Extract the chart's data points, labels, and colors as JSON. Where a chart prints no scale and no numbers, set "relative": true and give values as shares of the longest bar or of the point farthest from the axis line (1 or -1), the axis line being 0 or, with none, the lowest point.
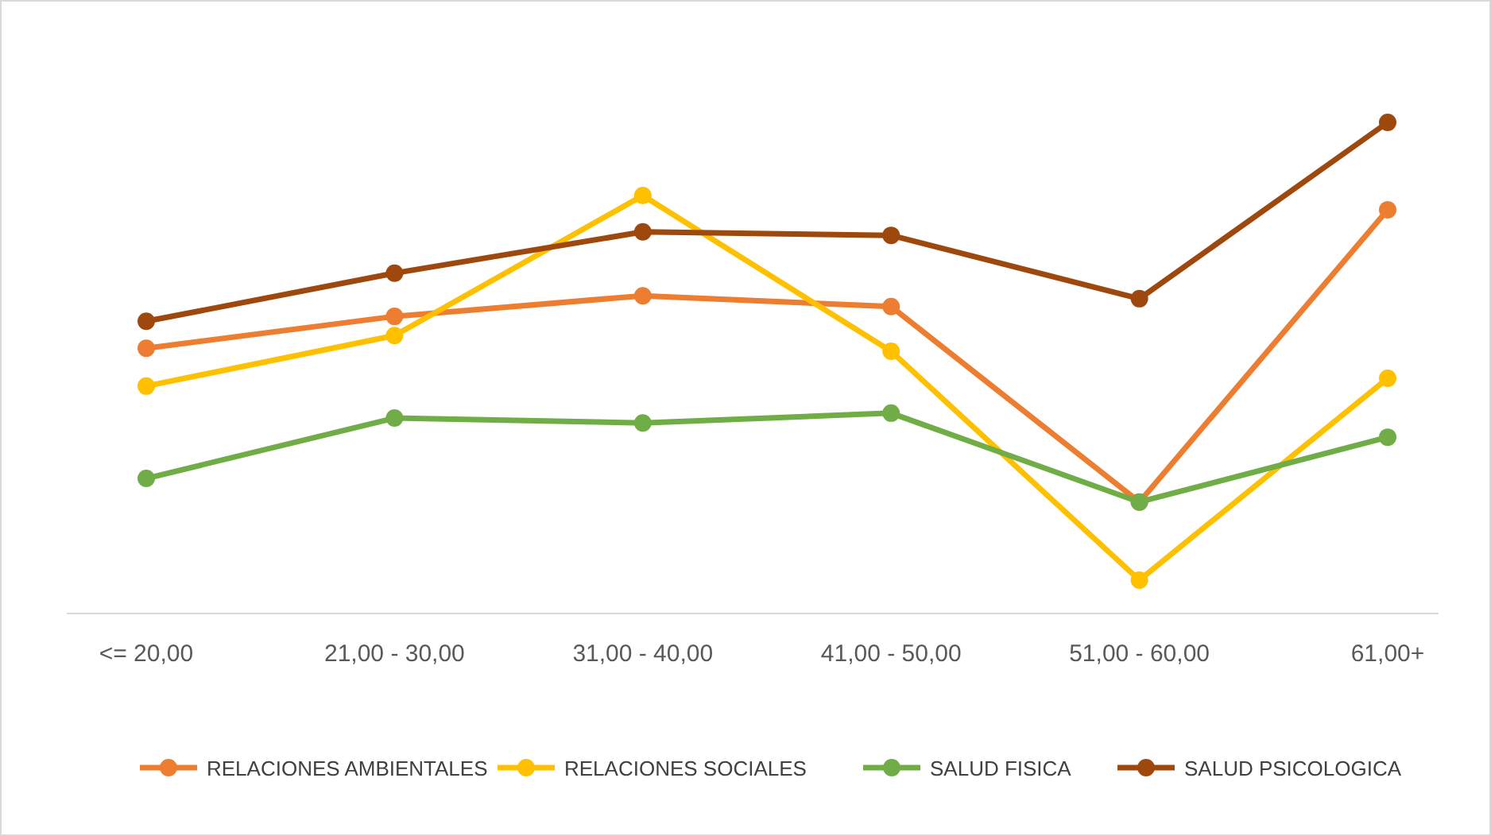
{
  "chart_data": {
    "type": "line",
    "relative": true,
    "categories": [
      "<= 20,00",
      "21,00 - 30,00",
      "31,00 - 40,00",
      "41,00 - 50,00",
      "51,00 - 60,00",
      "61,00+"
    ],
    "marker": "circle",
    "legend": "bottom",
    "series": [
      {
        "name": "RELACIONES AMBIENTALES",
        "color": "#ed7d31",
        "values": [
          0.54,
          0.605,
          0.647,
          0.625,
          0.227,
          0.822
        ]
      },
      {
        "name": "RELACIONES SOCIALES",
        "color": "#ffc000",
        "values": [
          0.463,
          0.566,
          0.851,
          0.534,
          0.068,
          0.479
        ]
      },
      {
        "name": "SALUD FISICA",
        "color": "#70ad47",
        "values": [
          0.275,
          0.398,
          0.388,
          0.408,
          0.227,
          0.359
        ]
      },
      {
        "name": "SALUD PSICOLOGICA",
        "color": "#9e480e",
        "values": [
          0.595,
          0.693,
          0.777,
          0.77,
          0.641,
          1
        ]
      }
    ]
  }
}
